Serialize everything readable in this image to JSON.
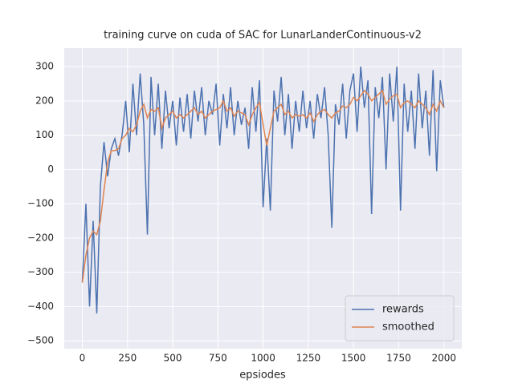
{
  "chart_data": {
    "type": "line",
    "title": "training curve on cuda of SAC for LunarLanderContinuous-v2",
    "x_label": "epsiodes",
    "x": [
      0,
      20,
      40,
      60,
      80,
      100,
      120,
      140,
      160,
      180,
      200,
      220,
      240,
      260,
      280,
      300,
      320,
      340,
      360,
      380,
      400,
      420,
      440,
      460,
      480,
      500,
      520,
      540,
      560,
      580,
      600,
      620,
      640,
      660,
      680,
      700,
      720,
      740,
      760,
      780,
      800,
      820,
      840,
      860,
      880,
      900,
      920,
      940,
      960,
      980,
      1000,
      1020,
      1040,
      1060,
      1080,
      1100,
      1120,
      1140,
      1160,
      1180,
      1200,
      1220,
      1240,
      1260,
      1280,
      1300,
      1320,
      1340,
      1360,
      1380,
      1400,
      1420,
      1440,
      1460,
      1480,
      1500,
      1520,
      1540,
      1560,
      1580,
      1600,
      1620,
      1640,
      1660,
      1680,
      1700,
      1720,
      1740,
      1760,
      1780,
      1800,
      1820,
      1840,
      1860,
      1880,
      1900,
      1920,
      1940,
      1960,
      1980,
      2000
    ],
    "series": [
      {
        "name": "rewards",
        "color": "#4c72b0",
        "values": [
          -330,
          -100,
          -400,
          -150,
          -420,
          -50,
          80,
          -20,
          60,
          90,
          40,
          100,
          200,
          50,
          250,
          100,
          280,
          130,
          -190,
          270,
          100,
          250,
          60,
          230,
          120,
          200,
          70,
          210,
          110,
          220,
          90,
          230,
          140,
          240,
          100,
          200,
          160,
          250,
          70,
          220,
          120,
          240,
          100,
          200,
          130,
          180,
          60,
          240,
          110,
          260,
          -110,
          90,
          -120,
          230,
          140,
          270,
          100,
          220,
          60,
          200,
          110,
          230,
          120,
          200,
          90,
          220,
          150,
          240,
          100,
          -170,
          190,
          130,
          250,
          90,
          230,
          280,
          110,
          300,
          180,
          260,
          -130,
          240,
          150,
          270,
          0,
          280,
          140,
          300,
          -120,
          250,
          110,
          230,
          60,
          280,
          120,
          230,
          40,
          290,
          -5,
          260,
          180
        ]
      },
      {
        "name": "smoothed",
        "color": "#dd8452",
        "values": [
          -330,
          -250,
          -200,
          -180,
          -190,
          -150,
          -60,
          20,
          55,
          55,
          60,
          90,
          100,
          120,
          110,
          130,
          170,
          190,
          150,
          175,
          170,
          180,
          120,
          150,
          160,
          170,
          150,
          160,
          150,
          160,
          170,
          180,
          160,
          170,
          150,
          160,
          170,
          175,
          180,
          200,
          170,
          180,
          155,
          170,
          165,
          160,
          130,
          160,
          180,
          195,
          130,
          70,
          120,
          170,
          180,
          190,
          160,
          170,
          150,
          160,
          155,
          160,
          150,
          165,
          140,
          160,
          170,
          175,
          160,
          150,
          165,
          170,
          185,
          180,
          190,
          210,
          200,
          215,
          230,
          220,
          200,
          210,
          220,
          230,
          190,
          205,
          215,
          220,
          180,
          195,
          200,
          190,
          180,
          200,
          190,
          180,
          160,
          190,
          170,
          200,
          180
        ]
      }
    ],
    "xlim": [
      -99.95,
      2098.95
    ],
    "ylim": [
      -523,
      354
    ],
    "xticks": [
      0,
      250,
      500,
      750,
      1000,
      1250,
      1500,
      1750,
      2000
    ],
    "yticks": [
      {
        "value": -500,
        "label": "−500"
      },
      {
        "value": -400,
        "label": "−400"
      },
      {
        "value": -300,
        "label": "−300"
      },
      {
        "value": -200,
        "label": "−200"
      },
      {
        "value": -100,
        "label": "−100"
      },
      0,
      100,
      200,
      300
    ],
    "grid": true,
    "legend": "lower right"
  }
}
